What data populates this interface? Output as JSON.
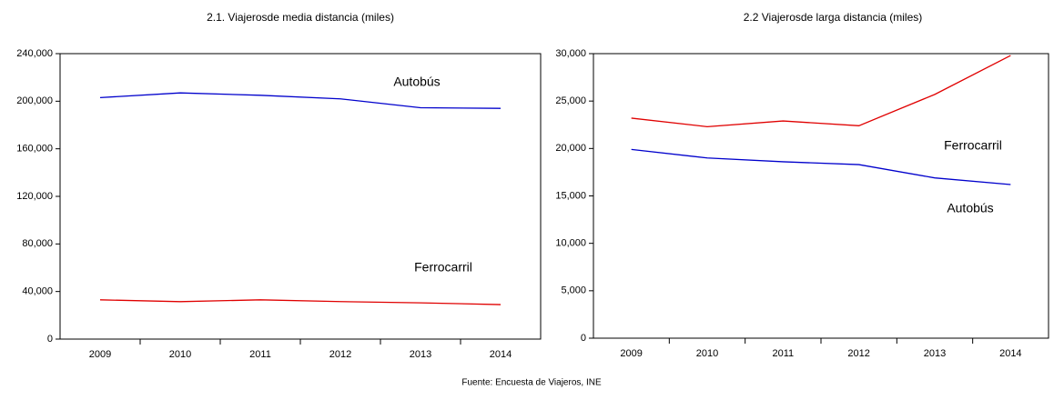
{
  "chart_data": [
    {
      "type": "line",
      "title": "2.1. Viajerosde media distancia (miles)",
      "categories": [
        "2009",
        "2010",
        "2011",
        "2012",
        "2013",
        "2014"
      ],
      "series": [
        {
          "name": "Autobús",
          "color": "#0000cc",
          "values": [
            203000,
            207000,
            205000,
            202000,
            194500,
            194000
          ]
        },
        {
          "name": "Ferrocarril",
          "color": "#e00000",
          "values": [
            33000,
            31500,
            33000,
            31500,
            30500,
            29000
          ]
        }
      ],
      "ylim": [
        0,
        240000
      ],
      "yticks": [
        0,
        {
          "value": 40000,
          "label": "40,000"
        },
        {
          "value": 80000,
          "label": "80,000"
        },
        {
          "value": 120000,
          "label": "120,000"
        },
        {
          "value": 160000,
          "label": "160,000"
        },
        {
          "value": 200000,
          "label": "200,000"
        },
        {
          "value": 240000,
          "label": "240,000"
        }
      ]
    },
    {
      "type": "line",
      "title": "2.2 Viajerosde larga distancia (miles)",
      "categories": [
        "2009",
        "2010",
        "2011",
        "2012",
        "2013",
        "2014"
      ],
      "series": [
        {
          "name": "Ferrocarril",
          "color": "#e00000",
          "values": [
            23200,
            22300,
            22900,
            22400,
            25700,
            29800
          ]
        },
        {
          "name": "Autobús",
          "color": "#0000cc",
          "values": [
            19900,
            19000,
            18600,
            18300,
            16900,
            16200
          ]
        }
      ],
      "ylim": [
        0,
        30000
      ],
      "yticks": [
        0,
        {
          "value": 5000,
          "label": "5,000"
        },
        {
          "value": 10000,
          "label": "10,000"
        },
        {
          "value": 15000,
          "label": "15,000"
        },
        {
          "value": 20000,
          "label": "20,000"
        },
        {
          "value": 25000,
          "label": "25,000"
        },
        {
          "value": 30000,
          "label": "30,000"
        }
      ]
    }
  ],
  "footer": "Fuente: Encuesta de Viajeros, INE"
}
